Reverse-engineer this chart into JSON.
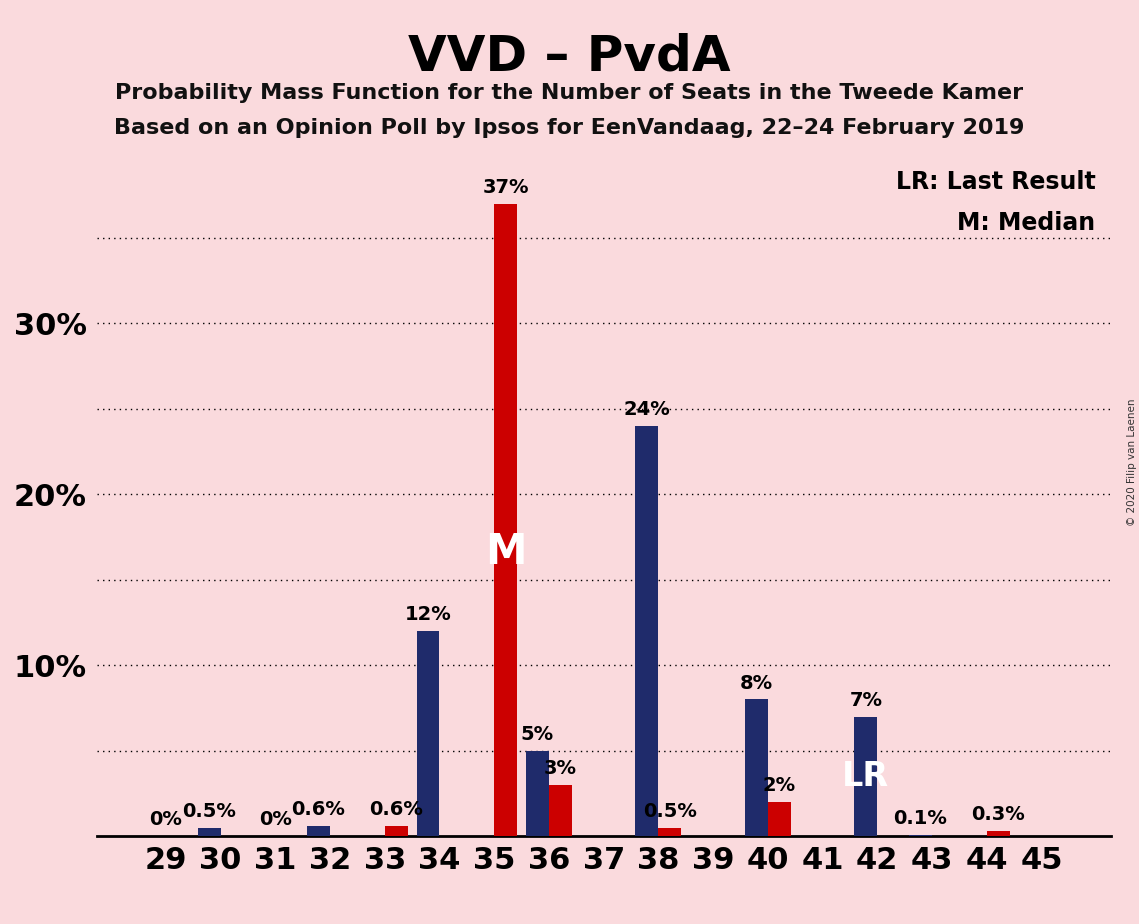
{
  "title": "VVD – PvdA",
  "subtitle1": "Probability Mass Function for the Number of Seats in the Tweede Kamer",
  "subtitle2": "Based on an Opinion Poll by Ipsos for EenVandaag, 22–24 February 2019",
  "copyright": "© 2020 Filip van Laenen",
  "legend_lr": "LR: Last Result",
  "legend_m": "M: Median",
  "seats": [
    29,
    30,
    31,
    32,
    33,
    34,
    35,
    36,
    37,
    38,
    39,
    40,
    41,
    42,
    43,
    44,
    45
  ],
  "vvd_values": [
    0.0,
    0.5,
    0.0,
    0.6,
    0.0,
    12.0,
    0.0,
    5.0,
    0.0,
    24.0,
    0.0,
    8.0,
    0.0,
    7.0,
    0.1,
    0.0,
    0.0
  ],
  "pvda_values": [
    0.0,
    0.0,
    0.0,
    0.0,
    0.6,
    0.0,
    37.0,
    3.0,
    0.0,
    0.5,
    0.0,
    2.0,
    0.0,
    0.0,
    0.0,
    0.3,
    0.0
  ],
  "vvd_color": "#1f2b6b",
  "pvda_color": "#cc0000",
  "background_color": "#fadadd",
  "median_seat": 35,
  "lr_seat": 42,
  "ylim": [
    0,
    40
  ],
  "grid_ticks": [
    5,
    10,
    15,
    20,
    25,
    30,
    35
  ],
  "ytick_positions": [
    10,
    20,
    30
  ],
  "ytick_labels": [
    "10%",
    "20%",
    "30%"
  ],
  "bar_width": 0.42,
  "title_fontsize": 36,
  "subtitle_fontsize": 16,
  "axis_fontsize": 22,
  "label_fontsize": 14,
  "zero_seats": [
    29,
    31
  ]
}
